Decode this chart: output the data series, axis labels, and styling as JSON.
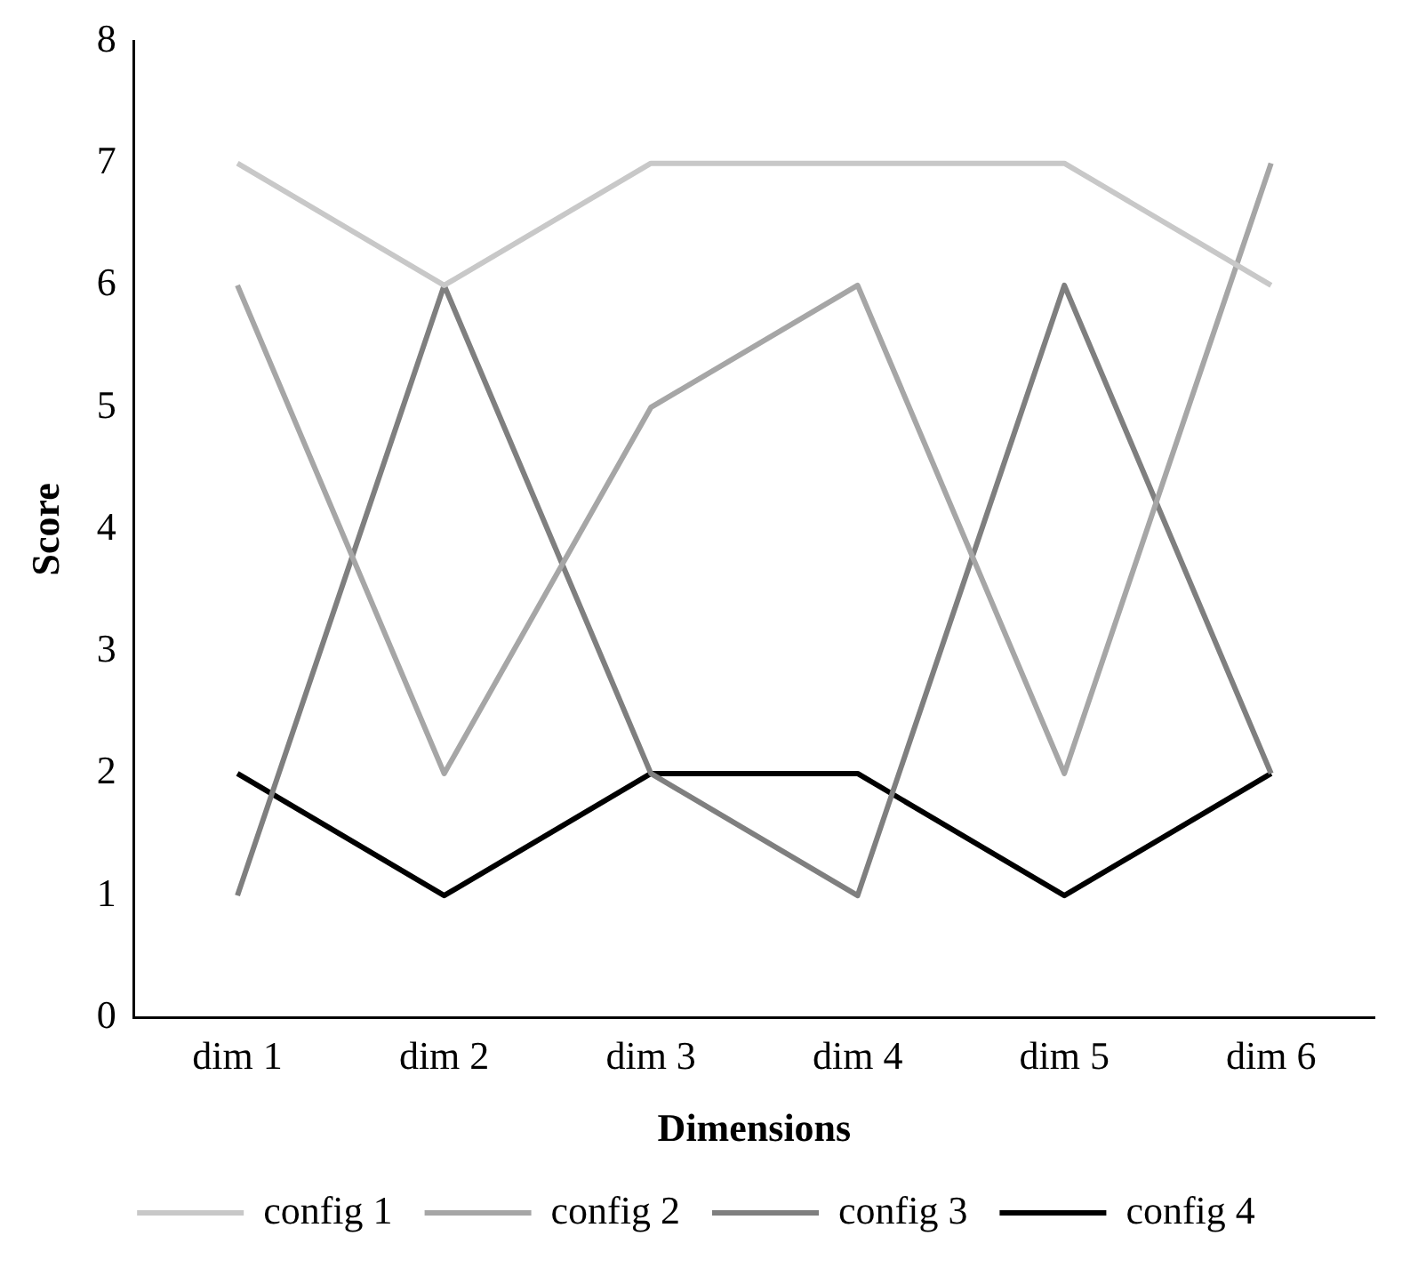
{
  "chart_data": {
    "type": "line",
    "xlabel": "Dimensions",
    "ylabel": "Score",
    "categories": [
      "dim 1",
      "dim 2",
      "dim 3",
      "dim 4",
      "dim 5",
      "dim 6"
    ],
    "series": [
      {
        "name": "config 1",
        "color": "#c8c8c8",
        "values": [
          7,
          6,
          7,
          7,
          7,
          6
        ]
      },
      {
        "name": "config 2",
        "color": "#a6a6a6",
        "values": [
          6,
          2,
          5,
          6,
          2,
          7
        ]
      },
      {
        "name": "config 3",
        "color": "#7f7f7f",
        "values": [
          1,
          6,
          2,
          1,
          6,
          2
        ]
      },
      {
        "name": "config 4",
        "color": "#000000",
        "values": [
          2,
          1,
          2,
          2,
          1,
          2
        ]
      }
    ],
    "ylim": [
      0,
      8
    ],
    "yticks": [
      0,
      1,
      2,
      3,
      4,
      5,
      6,
      7,
      8
    ],
    "grid": false,
    "legend": "bottom",
    "marker": "none",
    "line_style": "solid"
  }
}
